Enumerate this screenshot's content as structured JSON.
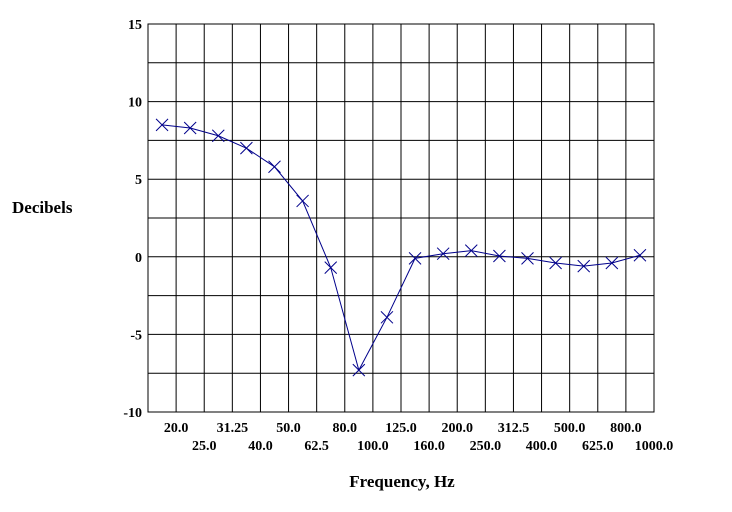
{
  "chart_data": {
    "type": "line",
    "xlabel": "Frequency, Hz",
    "ylabel": "Decibels",
    "ylim": [
      -10,
      15
    ],
    "yticks": [
      "15",
      "10",
      "5",
      "0",
      "-5",
      "-10"
    ],
    "grid": true,
    "x_categories": [
      "",
      "20.0",
      "25.0",
      "31.25",
      "40.0",
      "50.0",
      "62.5",
      "80.0",
      "100.0",
      "125.0",
      "160.0",
      "200.0",
      "250.0",
      "312.5",
      "400.0",
      "500.0",
      "625.0",
      "800.0",
      "1000.0"
    ],
    "series": [
      {
        "color": "#00008b",
        "marker": "x",
        "values": [
          8.5,
          8.3,
          7.8,
          7.0,
          5.8,
          3.6,
          -0.7,
          -7.3,
          -3.9,
          -0.1,
          0.2,
          0.4,
          0.05,
          -0.1,
          -0.4,
          -0.6,
          -0.4,
          0.1
        ]
      }
    ]
  }
}
